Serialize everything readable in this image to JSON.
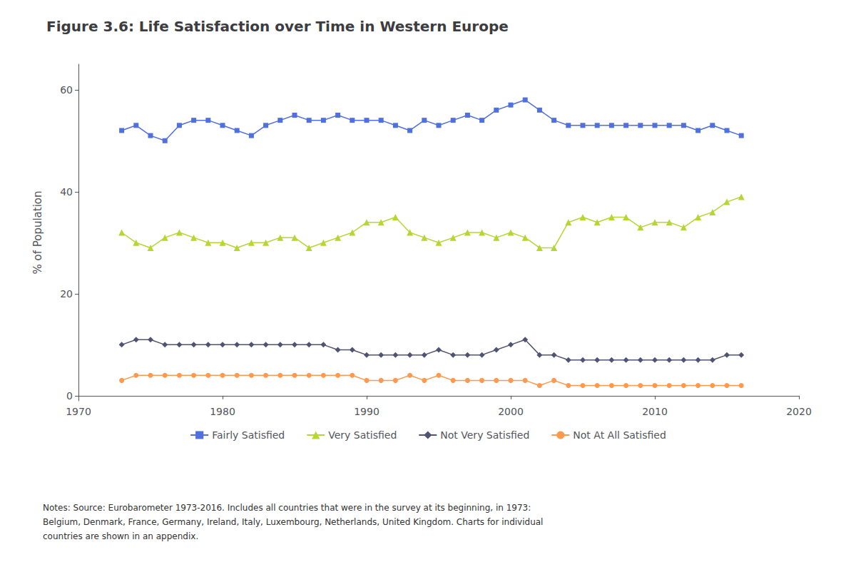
{
  "chart_data": {
    "type": "line",
    "title": "Figure 3.6: Life Satisfaction over Time in Western Europe",
    "ylabel": "% of Population",
    "notes": "Notes: Source: Eurobarometer 1973-2016. Includes all countries that were in the survey at its beginning, in 1973:\nBelgium, Denmark, France, Germany, Ireland, Italy, Luxembourg, Netherlands, United Kingdom. Charts for individual\ncountries are shown in an appendix.",
    "x": [
      1973,
      1974,
      1975,
      1976,
      1977,
      1978,
      1979,
      1980,
      1981,
      1982,
      1983,
      1984,
      1985,
      1986,
      1987,
      1988,
      1989,
      1990,
      1991,
      1992,
      1993,
      1994,
      1995,
      1996,
      1997,
      1998,
      1999,
      2000,
      2001,
      2002,
      2003,
      2004,
      2005,
      2006,
      2007,
      2008,
      2009,
      2010,
      2011,
      2012,
      2013,
      2014,
      2015,
      2016
    ],
    "series": [
      {
        "name": "Fairly Satisfied",
        "marker": "square",
        "values": [
          52,
          53,
          51,
          50,
          53,
          54,
          54,
          53,
          52,
          51,
          53,
          54,
          55,
          54,
          54,
          55,
          54,
          54,
          54,
          53,
          52,
          54,
          53,
          54,
          55,
          54,
          56,
          57,
          58,
          56,
          54,
          53,
          53,
          53,
          53,
          53,
          53,
          53,
          53,
          53,
          52,
          53,
          52,
          51
        ]
      },
      {
        "name": "Very Satisfied",
        "marker": "triangle",
        "values": [
          32,
          30,
          29,
          31,
          32,
          31,
          30,
          30,
          29,
          30,
          30,
          31,
          31,
          29,
          30,
          31,
          32,
          34,
          34,
          35,
          32,
          31,
          30,
          31,
          32,
          32,
          31,
          32,
          31,
          29,
          29,
          34,
          35,
          34,
          35,
          35,
          33,
          34,
          34,
          33,
          35,
          36,
          38,
          39
        ]
      },
      {
        "name": "Not Very Satisfied",
        "marker": "diamond",
        "values": [
          10,
          11,
          11,
          10,
          10,
          10,
          10,
          10,
          10,
          10,
          10,
          10,
          10,
          10,
          10,
          9,
          9,
          8,
          8,
          8,
          8,
          8,
          9,
          8,
          8,
          8,
          9,
          10,
          11,
          8,
          8,
          7,
          7,
          7,
          7,
          7,
          7,
          7,
          7,
          7,
          7,
          7,
          8,
          8
        ]
      },
      {
        "name": "Not At All Satisfied",
        "marker": "circle",
        "values": [
          3,
          4,
          4,
          4,
          4,
          4,
          4,
          4,
          4,
          4,
          4,
          4,
          4,
          4,
          4,
          4,
          4,
          3,
          3,
          3,
          4,
          3,
          4,
          3,
          3,
          3,
          3,
          3,
          3,
          2,
          3,
          2,
          2,
          2,
          2,
          2,
          2,
          2,
          2,
          2,
          2,
          2,
          2,
          2
        ]
      }
    ],
    "xlim": [
      1970,
      2020
    ],
    "xticks": [
      1970,
      1980,
      1990,
      2000,
      2010,
      2020
    ],
    "ylim": [
      -1,
      65
    ],
    "yticks": [
      0,
      20,
      40,
      60
    ],
    "grid": false,
    "legend": "bottom"
  }
}
